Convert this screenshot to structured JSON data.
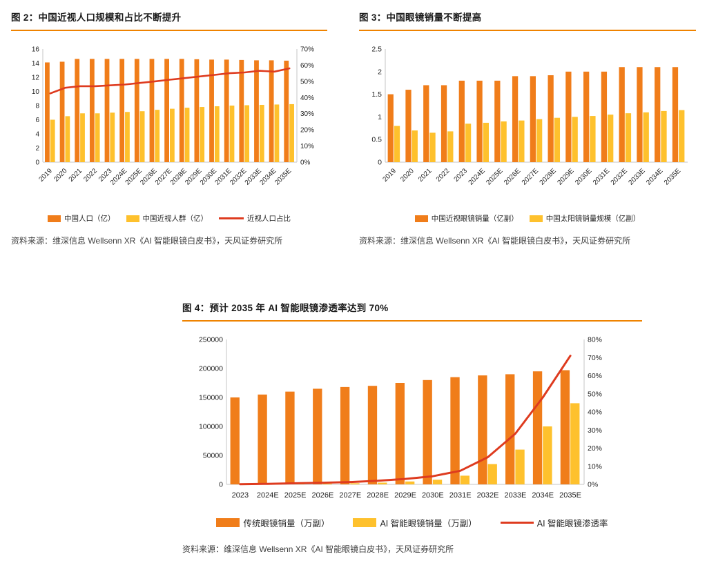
{
  "page": {
    "background": "#FFFFFF"
  },
  "colors": {
    "bar_orange": "#F07D1A",
    "bar_yellow": "#FEC12D",
    "line_red": "#DE3B1F",
    "title_rule_orange": "#EF8300",
    "title_text": "#1A1A1A",
    "source_text": "#3F3F3F",
    "axis_text": "#1F1F1F",
    "axis_line": "#C6C6C6"
  },
  "figures": [
    {
      "title": "图 2：中国近视人口规模和占比不断提升",
      "source": "资料来源：维深信息 Wellsenn XR《AI 智能眼镜白皮书》，天风证券研究所"
    },
    {
      "title": "图 3：中国眼镜销量不断提高",
      "source": "资料来源：维深信息 Wellsenn XR《AI 智能眼镜白皮书》，天风证券研究所"
    },
    {
      "title": "图 4：预计 2035 年 AI 智能眼镜渗透率达到 70%",
      "source": "资料来源：维深信息 Wellsenn XR《AI 智能眼镜白皮书》，天风证券研究所"
    }
  ],
  "chart_data": [
    {
      "type": "bar",
      "title": "中国近视人口规模和占比不断提升",
      "legend_position": "bottom",
      "grid": false,
      "categories": [
        "2019",
        "2020",
        "2021",
        "2022",
        "2023",
        "2024E",
        "2025E",
        "2026E",
        "2027E",
        "2028E",
        "2029E",
        "2030E",
        "2031E",
        "2032E",
        "2033E",
        "2034E",
        "2035E"
      ],
      "series": [
        {
          "name": "中国人口（亿）",
          "type": "bar",
          "axis": "left",
          "color": "#F07D1A",
          "values": [
            14.1,
            14.2,
            14.6,
            14.6,
            14.6,
            14.6,
            14.6,
            14.6,
            14.6,
            14.6,
            14.55,
            14.5,
            14.5,
            14.45,
            14.4,
            14.4,
            14.35
          ]
        },
        {
          "name": "中国近视人群（亿）",
          "type": "bar",
          "axis": "left",
          "color": "#FEC12D",
          "values": [
            6.0,
            6.5,
            6.9,
            6.9,
            7.0,
            7.1,
            7.2,
            7.4,
            7.55,
            7.7,
            7.8,
            7.9,
            8.0,
            8.05,
            8.1,
            8.15,
            8.2
          ]
        },
        {
          "name": "近视人口占比",
          "type": "line",
          "axis": "right",
          "color": "#DE3B1F",
          "values": [
            42.5,
            46,
            47,
            47,
            47.5,
            48,
            49,
            50,
            51,
            52,
            53,
            54,
            55,
            55.5,
            56.5,
            56,
            58
          ]
        }
      ],
      "left_axis": {
        "min": 0,
        "max": 16,
        "step": 2,
        "suffix": ""
      },
      "right_axis": {
        "min": 0,
        "max": 70,
        "step": 10,
        "suffix": "%"
      }
    },
    {
      "type": "bar",
      "title": "中国眼镜销量不断提高",
      "legend_position": "bottom",
      "grid": false,
      "categories": [
        "2019",
        "2020",
        "2021",
        "2022",
        "2023",
        "2024E",
        "2025E",
        "2026E",
        "2027E",
        "2028E",
        "2029E",
        "2030E",
        "2031E",
        "2032E",
        "2033E",
        "2034E",
        "2035E"
      ],
      "series": [
        {
          "name": "中国近视眼镜销量（亿副）",
          "type": "bar",
          "axis": "left",
          "color": "#F07D1A",
          "values": [
            1.5,
            1.6,
            1.7,
            1.7,
            1.8,
            1.8,
            1.8,
            1.9,
            1.9,
            1.92,
            2.0,
            2.0,
            2.0,
            2.1,
            2.1,
            2.1,
            2.1
          ]
        },
        {
          "name": "中国太阳镜销量规模（亿副）",
          "type": "bar",
          "axis": "left",
          "color": "#FEC12D",
          "values": [
            0.8,
            0.7,
            0.65,
            0.68,
            0.85,
            0.87,
            0.9,
            0.92,
            0.95,
            0.98,
            1.0,
            1.02,
            1.05,
            1.08,
            1.1,
            1.13,
            1.15
          ]
        }
      ],
      "left_axis": {
        "min": 0,
        "max": 2.5,
        "step": 0.5,
        "suffix": ""
      }
    },
    {
      "type": "bar",
      "title": "预计 2035 年 AI 智能眼镜渗透率达到 70%",
      "legend_position": "bottom",
      "grid": false,
      "categories": [
        "2023",
        "2024E",
        "2025E",
        "2026E",
        "2027E",
        "2028E",
        "2029E",
        "2030E",
        "2031E",
        "2032E",
        "2033E",
        "2034E",
        "2035E"
      ],
      "series": [
        {
          "name": "传统眼镜销量（万副）",
          "type": "bar",
          "axis": "left",
          "color": "#F07D1A",
          "values": [
            150000,
            155000,
            160000,
            165000,
            168000,
            170000,
            175000,
            180000,
            185000,
            188000,
            190000,
            195000,
            197000
          ]
        },
        {
          "name": "AI 智能眼镜销量（万副）",
          "type": "bar",
          "axis": "left",
          "color": "#FEC12D",
          "values": [
            200,
            500,
            900,
            1300,
            2000,
            3000,
            5000,
            8000,
            15000,
            35000,
            60000,
            100000,
            140000
          ]
        },
        {
          "name": "AI 智能眼镜渗透率",
          "type": "line",
          "axis": "right",
          "color": "#DE3B1F",
          "values": [
            0.1,
            0.3,
            0.6,
            0.9,
            1.3,
            2,
            3,
            4.5,
            7.5,
            15,
            28,
            48,
            71
          ]
        }
      ],
      "left_axis": {
        "min": 0,
        "max": 250000,
        "step": 50000,
        "suffix": ""
      },
      "right_axis": {
        "min": 0,
        "max": 80,
        "step": 10,
        "suffix": "%"
      }
    }
  ]
}
